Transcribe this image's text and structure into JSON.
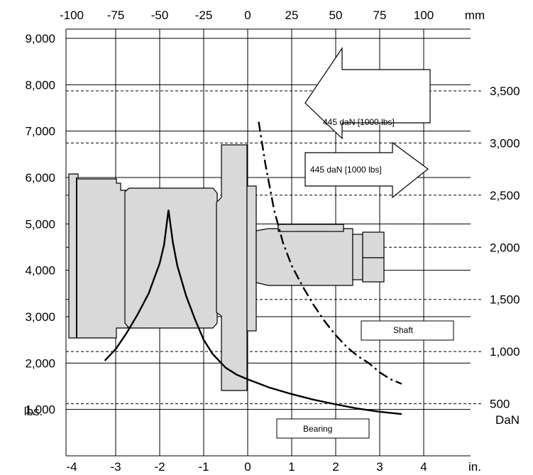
{
  "chart_data": {
    "type": "line",
    "x_axis_bottom": {
      "unit": "in.",
      "ticks": [
        -4,
        -3,
        -2,
        -1,
        0,
        1,
        2,
        3,
        4
      ],
      "range": [
        -4,
        4
      ]
    },
    "x_axis_top": {
      "unit": "mm",
      "ticks": [
        -100,
        -75,
        -50,
        -25,
        0,
        25,
        50,
        75,
        100
      ]
    },
    "y_axis_left": {
      "unit": "lbs.",
      "ticks": [
        "1,000",
        "2,000",
        "3,000",
        "4,000",
        "5,000",
        "6,000",
        "7,000",
        "8,000",
        "9,000"
      ],
      "values": [
        1000,
        2000,
        3000,
        4000,
        5000,
        6000,
        7000,
        8000,
        9000
      ],
      "range": [
        0,
        9000
      ]
    },
    "y_axis_right": {
      "unit": "DaN",
      "ticks": [
        "500",
        "1,000",
        "1,500",
        "2,000",
        "2,500",
        "3,000",
        "3,500"
      ],
      "values": [
        500,
        1000,
        1500,
        2000,
        2500,
        3000,
        3500
      ]
    },
    "grid": true,
    "series": [
      {
        "name": "Bearing",
        "style": "solid",
        "x": [
          -3.25,
          -3.0,
          -2.75,
          -2.5,
          -2.25,
          -2.0,
          -1.9,
          -1.8,
          -1.7,
          -1.6,
          -1.4,
          -1.2,
          -1.0,
          -0.8,
          -0.5,
          -0.25,
          0.0,
          0.5,
          1.0,
          1.5,
          2.0,
          2.5,
          3.0,
          3.5
        ],
        "y": [
          2050,
          2300,
          2650,
          3050,
          3500,
          4150,
          4550,
          5300,
          4600,
          4100,
          3450,
          2950,
          2500,
          2200,
          1900,
          1750,
          1650,
          1470,
          1330,
          1210,
          1110,
          1020,
          950,
          900
        ]
      },
      {
        "name": "Shaft",
        "style": "dash-dot",
        "x": [
          0.25,
          0.4,
          0.6,
          0.8,
          1.0,
          1.25,
          1.5,
          1.75,
          2.0,
          2.25,
          2.5,
          2.75,
          3.0,
          3.25,
          3.5
        ],
        "y": [
          7200,
          6300,
          5300,
          4600,
          4100,
          3650,
          3250,
          2900,
          2600,
          2350,
          2150,
          2000,
          1800,
          1650,
          1550
        ]
      }
    ],
    "annotations": [
      {
        "text": "445 daN [1000 lbs]",
        "direction": "left"
      },
      {
        "text": "445 daN [1000 lbs]",
        "direction": "right"
      }
    ]
  }
}
